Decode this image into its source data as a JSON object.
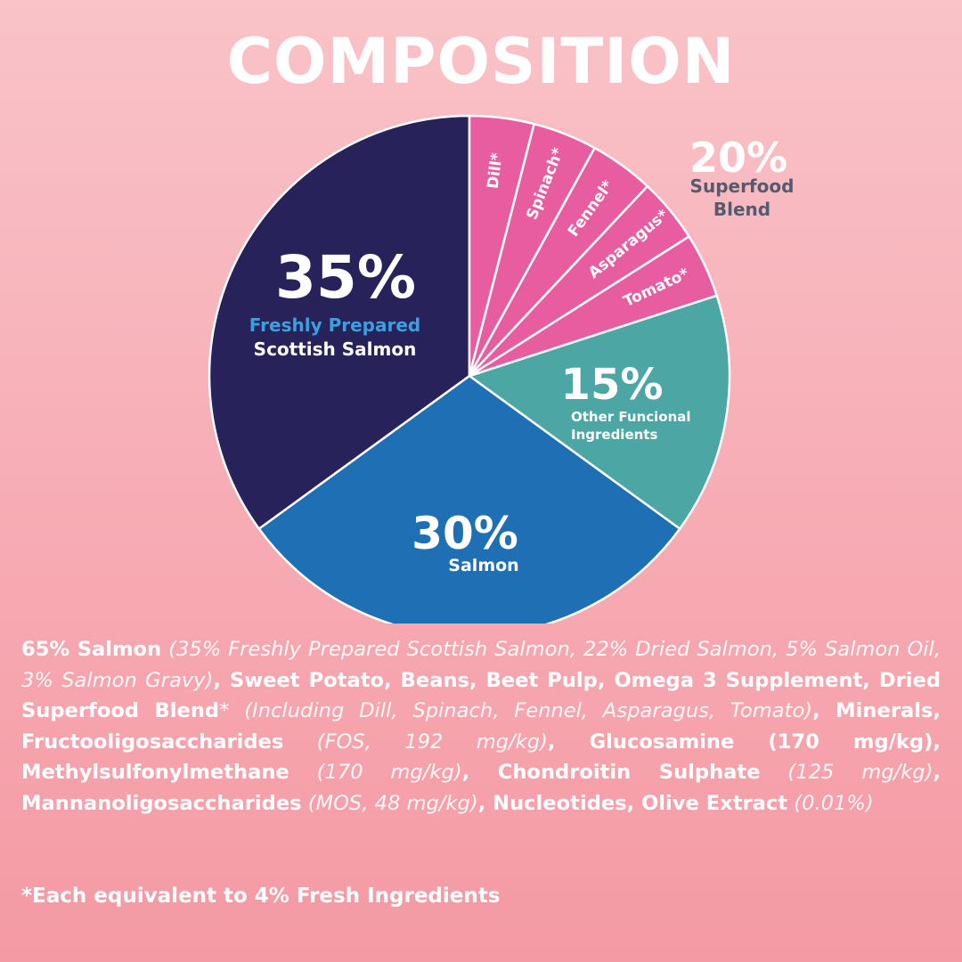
{
  "title": "COMPOSITION",
  "colors": {
    "background": "#f8b3ba",
    "salmon_fresh": "#27225a",
    "salmon": "#1f6fb5",
    "functional": "#4ba6a4",
    "superfood": "#e85ca0",
    "accent_blue_text": "#3aa0e0",
    "superfood_text": "#545b6e"
  },
  "chart_data": {
    "type": "pie",
    "slices": [
      {
        "percent": "35%",
        "value": 35,
        "label_line1": "Freshly Prepared",
        "label_line2": "Scottish Salmon"
      },
      {
        "percent": "30%",
        "value": 30,
        "label_line1": "Salmon"
      },
      {
        "percent": "15%",
        "value": 15,
        "label_line1": "Other Funcional",
        "label_line2": "Ingredients"
      },
      {
        "percent": "20%",
        "value": 20,
        "label_line1": "Superfood",
        "label_line2": "Blend",
        "sub_slices": [
          {
            "label": "Dill*",
            "value": 4
          },
          {
            "label": "Spinach*",
            "value": 4
          },
          {
            "label": "Fennel*",
            "value": 4
          },
          {
            "label": "Asparagus*",
            "value": 4
          },
          {
            "label": "Tomato*",
            "value": 4
          }
        ]
      }
    ]
  },
  "ingredients": [
    {
      "t": "65% Salmon",
      "s": "b"
    },
    {
      "t": " (35% Freshly Prepared Scottish Salmon, 22% Dried Salmon, 5% Salmon Oil, 3% Salmon Gravy)",
      "s": "i"
    },
    {
      "t": ", Sweet Potato, Beans, Beet Pulp, Omega 3 Supplement, Dried Superfood Blend",
      "s": "b"
    },
    {
      "t": "*",
      "s": "n"
    },
    {
      "t": " (Including Dill, Spinach, Fennel, Asparagus, Tomato)",
      "s": "i"
    },
    {
      "t": ", Minerals, Fructooligosaccharides",
      "s": "b"
    },
    {
      "t": " (FOS, 192 mg/kg)",
      "s": "i"
    },
    {
      "t": ", Glucosamine (170 mg/kg), Methylsulfonylmethane",
      "s": "b"
    },
    {
      "t": " (170 mg/kg)",
      "s": "i"
    },
    {
      "t": ", Chondroitin Sulphate",
      "s": "b"
    },
    {
      "t": " (125 mg/kg)",
      "s": "i"
    },
    {
      "t": ", Mannanoligosaccharides",
      "s": "b"
    },
    {
      "t": " (MOS, 48 mg/kg)",
      "s": "i"
    },
    {
      "t": ", Nucleotides, Olive Extract",
      "s": "b"
    },
    {
      "t": " (0.01%)",
      "s": "i"
    }
  ],
  "footnote": "*Each equivalent to 4% Fresh Ingredients"
}
